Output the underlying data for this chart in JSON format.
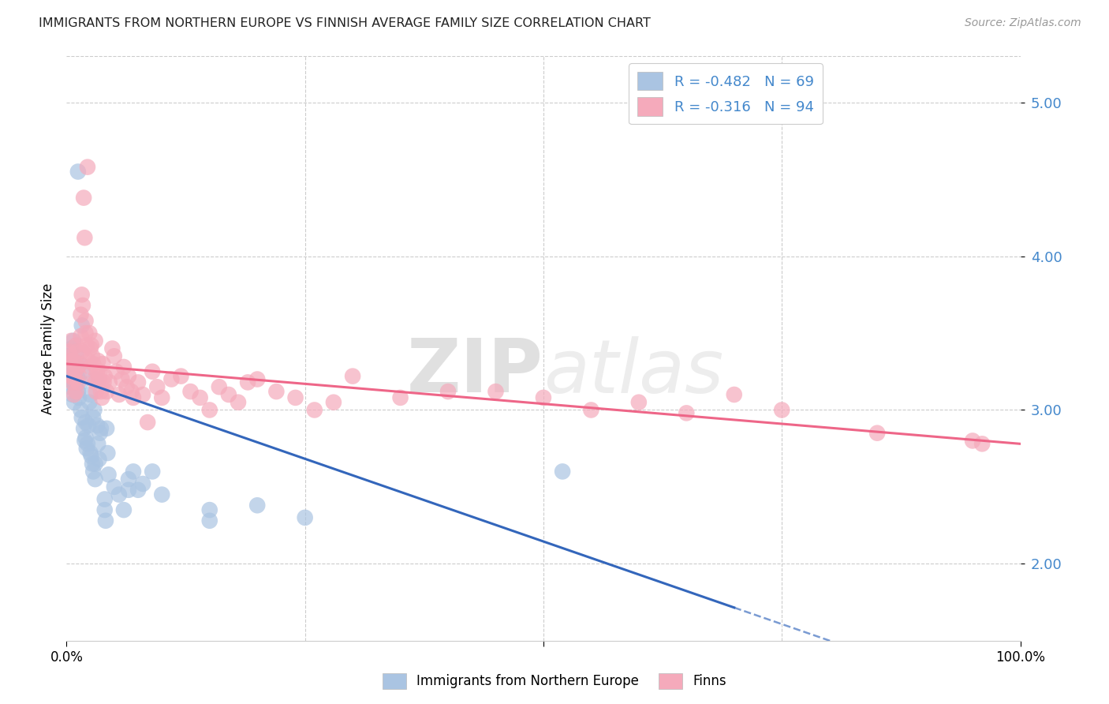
{
  "title": "IMMIGRANTS FROM NORTHERN EUROPE VS FINNISH AVERAGE FAMILY SIZE CORRELATION CHART",
  "source": "Source: ZipAtlas.com",
  "ylabel": "Average Family Size",
  "yticks": [
    2.0,
    3.0,
    4.0,
    5.0
  ],
  "xlim": [
    0.0,
    1.0
  ],
  "ylim": [
    1.5,
    5.3
  ],
  "watermark": "ZIPatlas",
  "blue_R": "-0.482",
  "blue_N": 69,
  "pink_R": "-0.316",
  "pink_N": 94,
  "blue_color": "#aac4e2",
  "pink_color": "#f5aabb",
  "blue_line_color": "#3366bb",
  "pink_line_color": "#ee6688",
  "blue_intercept": 3.22,
  "blue_slope": -2.15,
  "pink_intercept": 3.3,
  "pink_slope": -0.52,
  "blue_scatter": [
    [
      0.001,
      3.35
    ],
    [
      0.002,
      3.32
    ],
    [
      0.003,
      3.28
    ],
    [
      0.003,
      3.2
    ],
    [
      0.004,
      3.15
    ],
    [
      0.005,
      3.4
    ],
    [
      0.005,
      3.22
    ],
    [
      0.006,
      3.3
    ],
    [
      0.006,
      3.1
    ],
    [
      0.007,
      3.45
    ],
    [
      0.008,
      3.25
    ],
    [
      0.008,
      3.05
    ],
    [
      0.009,
      3.15
    ],
    [
      0.01,
      3.18
    ],
    [
      0.01,
      3.35
    ],
    [
      0.011,
      3.22
    ],
    [
      0.012,
      3.12
    ],
    [
      0.012,
      4.55
    ],
    [
      0.013,
      3.08
    ],
    [
      0.014,
      3.3
    ],
    [
      0.015,
      3.18
    ],
    [
      0.015,
      3.0
    ],
    [
      0.016,
      2.95
    ],
    [
      0.016,
      3.55
    ],
    [
      0.017,
      3.25
    ],
    [
      0.018,
      2.88
    ],
    [
      0.019,
      2.8
    ],
    [
      0.02,
      2.92
    ],
    [
      0.02,
      2.82
    ],
    [
      0.021,
      2.75
    ],
    [
      0.022,
      2.78
    ],
    [
      0.023,
      2.9
    ],
    [
      0.024,
      3.05
    ],
    [
      0.025,
      3.1
    ],
    [
      0.025,
      2.72
    ],
    [
      0.026,
      2.7
    ],
    [
      0.027,
      2.65
    ],
    [
      0.028,
      2.6
    ],
    [
      0.028,
      2.95
    ],
    [
      0.029,
      3.0
    ],
    [
      0.03,
      2.65
    ],
    [
      0.03,
      2.55
    ],
    [
      0.031,
      3.2
    ],
    [
      0.032,
      2.9
    ],
    [
      0.033,
      2.78
    ],
    [
      0.034,
      2.68
    ],
    [
      0.035,
      2.85
    ],
    [
      0.036,
      2.88
    ],
    [
      0.04,
      2.42
    ],
    [
      0.04,
      2.35
    ],
    [
      0.041,
      2.28
    ],
    [
      0.042,
      2.88
    ],
    [
      0.043,
      2.72
    ],
    [
      0.044,
      2.58
    ],
    [
      0.05,
      2.5
    ],
    [
      0.055,
      2.45
    ],
    [
      0.06,
      2.35
    ],
    [
      0.065,
      2.55
    ],
    [
      0.065,
      2.48
    ],
    [
      0.07,
      2.6
    ],
    [
      0.075,
      2.48
    ],
    [
      0.08,
      2.52
    ],
    [
      0.09,
      2.6
    ],
    [
      0.1,
      2.45
    ],
    [
      0.15,
      2.35
    ],
    [
      0.15,
      2.28
    ],
    [
      0.2,
      2.38
    ],
    [
      0.25,
      2.3
    ],
    [
      0.52,
      2.6
    ]
  ],
  "pink_scatter": [
    [
      0.002,
      3.38
    ],
    [
      0.003,
      3.32
    ],
    [
      0.004,
      3.35
    ],
    [
      0.005,
      3.45
    ],
    [
      0.005,
      3.22
    ],
    [
      0.006,
      3.18
    ],
    [
      0.006,
      3.28
    ],
    [
      0.007,
      3.32
    ],
    [
      0.008,
      3.2
    ],
    [
      0.008,
      3.1
    ],
    [
      0.009,
      3.25
    ],
    [
      0.01,
      3.12
    ],
    [
      0.01,
      3.42
    ],
    [
      0.011,
      3.38
    ],
    [
      0.012,
      3.28
    ],
    [
      0.012,
      3.18
    ],
    [
      0.013,
      3.22
    ],
    [
      0.014,
      3.3
    ],
    [
      0.015,
      3.62
    ],
    [
      0.015,
      3.48
    ],
    [
      0.016,
      3.38
    ],
    [
      0.016,
      3.75
    ],
    [
      0.017,
      3.68
    ],
    [
      0.018,
      4.38
    ],
    [
      0.019,
      4.12
    ],
    [
      0.02,
      3.58
    ],
    [
      0.02,
      3.5
    ],
    [
      0.021,
      3.42
    ],
    [
      0.022,
      4.58
    ],
    [
      0.023,
      3.32
    ],
    [
      0.024,
      3.5
    ],
    [
      0.025,
      3.4
    ],
    [
      0.025,
      3.28
    ],
    [
      0.026,
      3.42
    ],
    [
      0.027,
      3.35
    ],
    [
      0.028,
      3.3
    ],
    [
      0.029,
      3.2
    ],
    [
      0.03,
      3.45
    ],
    [
      0.03,
      3.18
    ],
    [
      0.031,
      3.12
    ],
    [
      0.032,
      3.25
    ],
    [
      0.033,
      3.32
    ],
    [
      0.034,
      3.2
    ],
    [
      0.035,
      3.25
    ],
    [
      0.036,
      3.12
    ],
    [
      0.037,
      3.08
    ],
    [
      0.038,
      3.3
    ],
    [
      0.039,
      3.18
    ],
    [
      0.04,
      3.22
    ],
    [
      0.042,
      3.12
    ],
    [
      0.045,
      3.18
    ],
    [
      0.048,
      3.4
    ],
    [
      0.05,
      3.35
    ],
    [
      0.052,
      3.25
    ],
    [
      0.055,
      3.1
    ],
    [
      0.058,
      3.2
    ],
    [
      0.06,
      3.28
    ],
    [
      0.063,
      3.15
    ],
    [
      0.065,
      3.22
    ],
    [
      0.068,
      3.12
    ],
    [
      0.07,
      3.08
    ],
    [
      0.075,
      3.18
    ],
    [
      0.08,
      3.1
    ],
    [
      0.085,
      2.92
    ],
    [
      0.09,
      3.25
    ],
    [
      0.095,
      3.15
    ],
    [
      0.1,
      3.08
    ],
    [
      0.11,
      3.2
    ],
    [
      0.12,
      3.22
    ],
    [
      0.13,
      3.12
    ],
    [
      0.14,
      3.08
    ],
    [
      0.15,
      3.0
    ],
    [
      0.16,
      3.15
    ],
    [
      0.17,
      3.1
    ],
    [
      0.18,
      3.05
    ],
    [
      0.19,
      3.18
    ],
    [
      0.2,
      3.2
    ],
    [
      0.22,
      3.12
    ],
    [
      0.24,
      3.08
    ],
    [
      0.26,
      3.0
    ],
    [
      0.28,
      3.05
    ],
    [
      0.3,
      3.22
    ],
    [
      0.35,
      3.08
    ],
    [
      0.4,
      3.12
    ],
    [
      0.45,
      3.12
    ],
    [
      0.5,
      3.08
    ],
    [
      0.55,
      3.0
    ],
    [
      0.6,
      3.05
    ],
    [
      0.65,
      2.98
    ],
    [
      0.7,
      3.1
    ],
    [
      0.75,
      3.0
    ],
    [
      0.85,
      2.85
    ],
    [
      0.95,
      2.8
    ],
    [
      0.96,
      2.78
    ]
  ]
}
